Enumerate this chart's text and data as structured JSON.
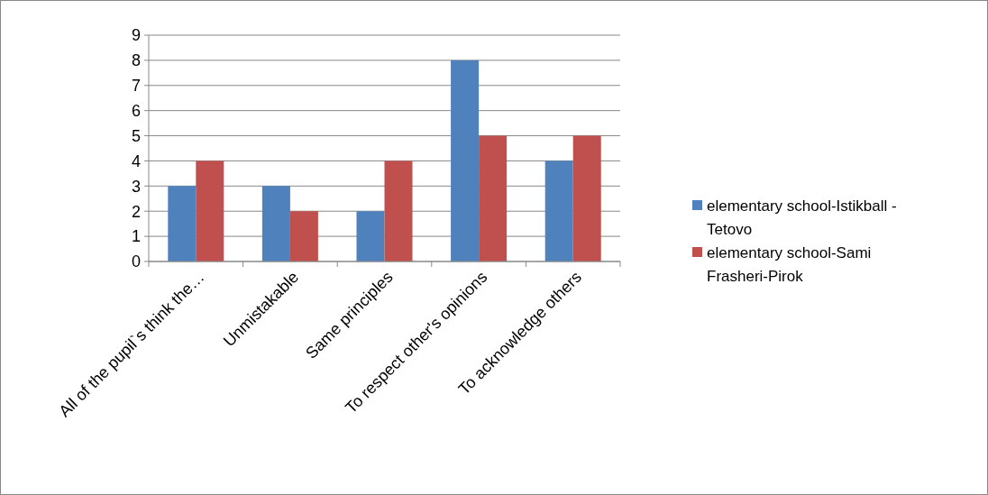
{
  "chart_data": {
    "type": "bar",
    "categories": [
      "All of the pupil`s think the…",
      "Unmistakable",
      "Same principles",
      "To respect other's opinions",
      "To acknowledge others"
    ],
    "series": [
      {
        "name": "elementary school-Istikball - Tetovo",
        "color": "#4f81bd",
        "values": [
          3,
          3,
          2,
          8,
          4
        ]
      },
      {
        "name": "elementary school-Sami Frasheri-Pirok",
        "color": "#c0504d",
        "values": [
          4,
          2,
          4,
          5,
          5
        ]
      }
    ],
    "ylim": [
      0,
      9
    ],
    "yticks": [
      0,
      1,
      2,
      3,
      4,
      5,
      6,
      7,
      8,
      9
    ],
    "grid": "y",
    "legend": "right"
  }
}
